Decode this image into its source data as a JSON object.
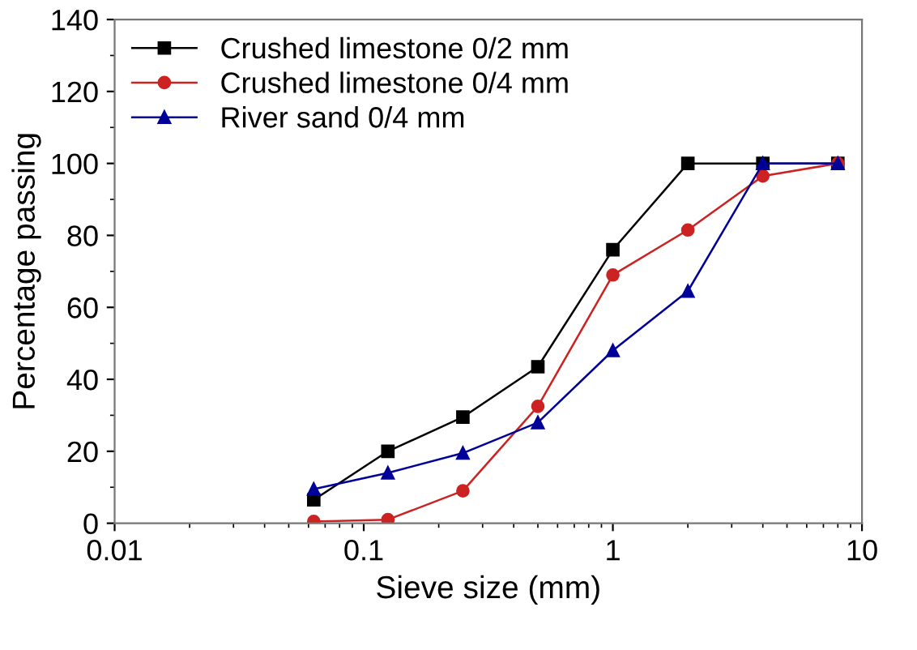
{
  "chart_data": {
    "type": "line",
    "xlabel": "Sieve size (mm)",
    "ylabel": "Percentage passing",
    "log": "x",
    "xlim": [
      0.01,
      10
    ],
    "xticks": [
      0.01,
      0.1,
      1,
      10
    ],
    "ylim": [
      0,
      140
    ],
    "yticks": [
      0,
      20,
      40,
      60,
      80,
      100,
      120,
      140
    ],
    "x": [
      0.063,
      0.125,
      0.25,
      0.5,
      1,
      2,
      4,
      8
    ],
    "grid": false,
    "legend": "top left",
    "line_style": "solid",
    "series": [
      {
        "name": "Crushed limestone 0/2 mm",
        "color": "#000000",
        "marker": "square",
        "values": [
          6.5,
          20,
          29.5,
          43.5,
          76,
          100,
          100,
          100
        ]
      },
      {
        "name": "Crushed limestone 0/4 mm",
        "color": "#cc2222",
        "marker": "circle",
        "values": [
          0.5,
          1,
          9,
          32.5,
          69,
          81.5,
          96.5,
          100
        ]
      },
      {
        "name": "River sand 0/4 mm",
        "color": "#000099",
        "marker": "triangle",
        "values": [
          9.5,
          14,
          19.5,
          28,
          48,
          64.5,
          100,
          100
        ]
      }
    ]
  }
}
